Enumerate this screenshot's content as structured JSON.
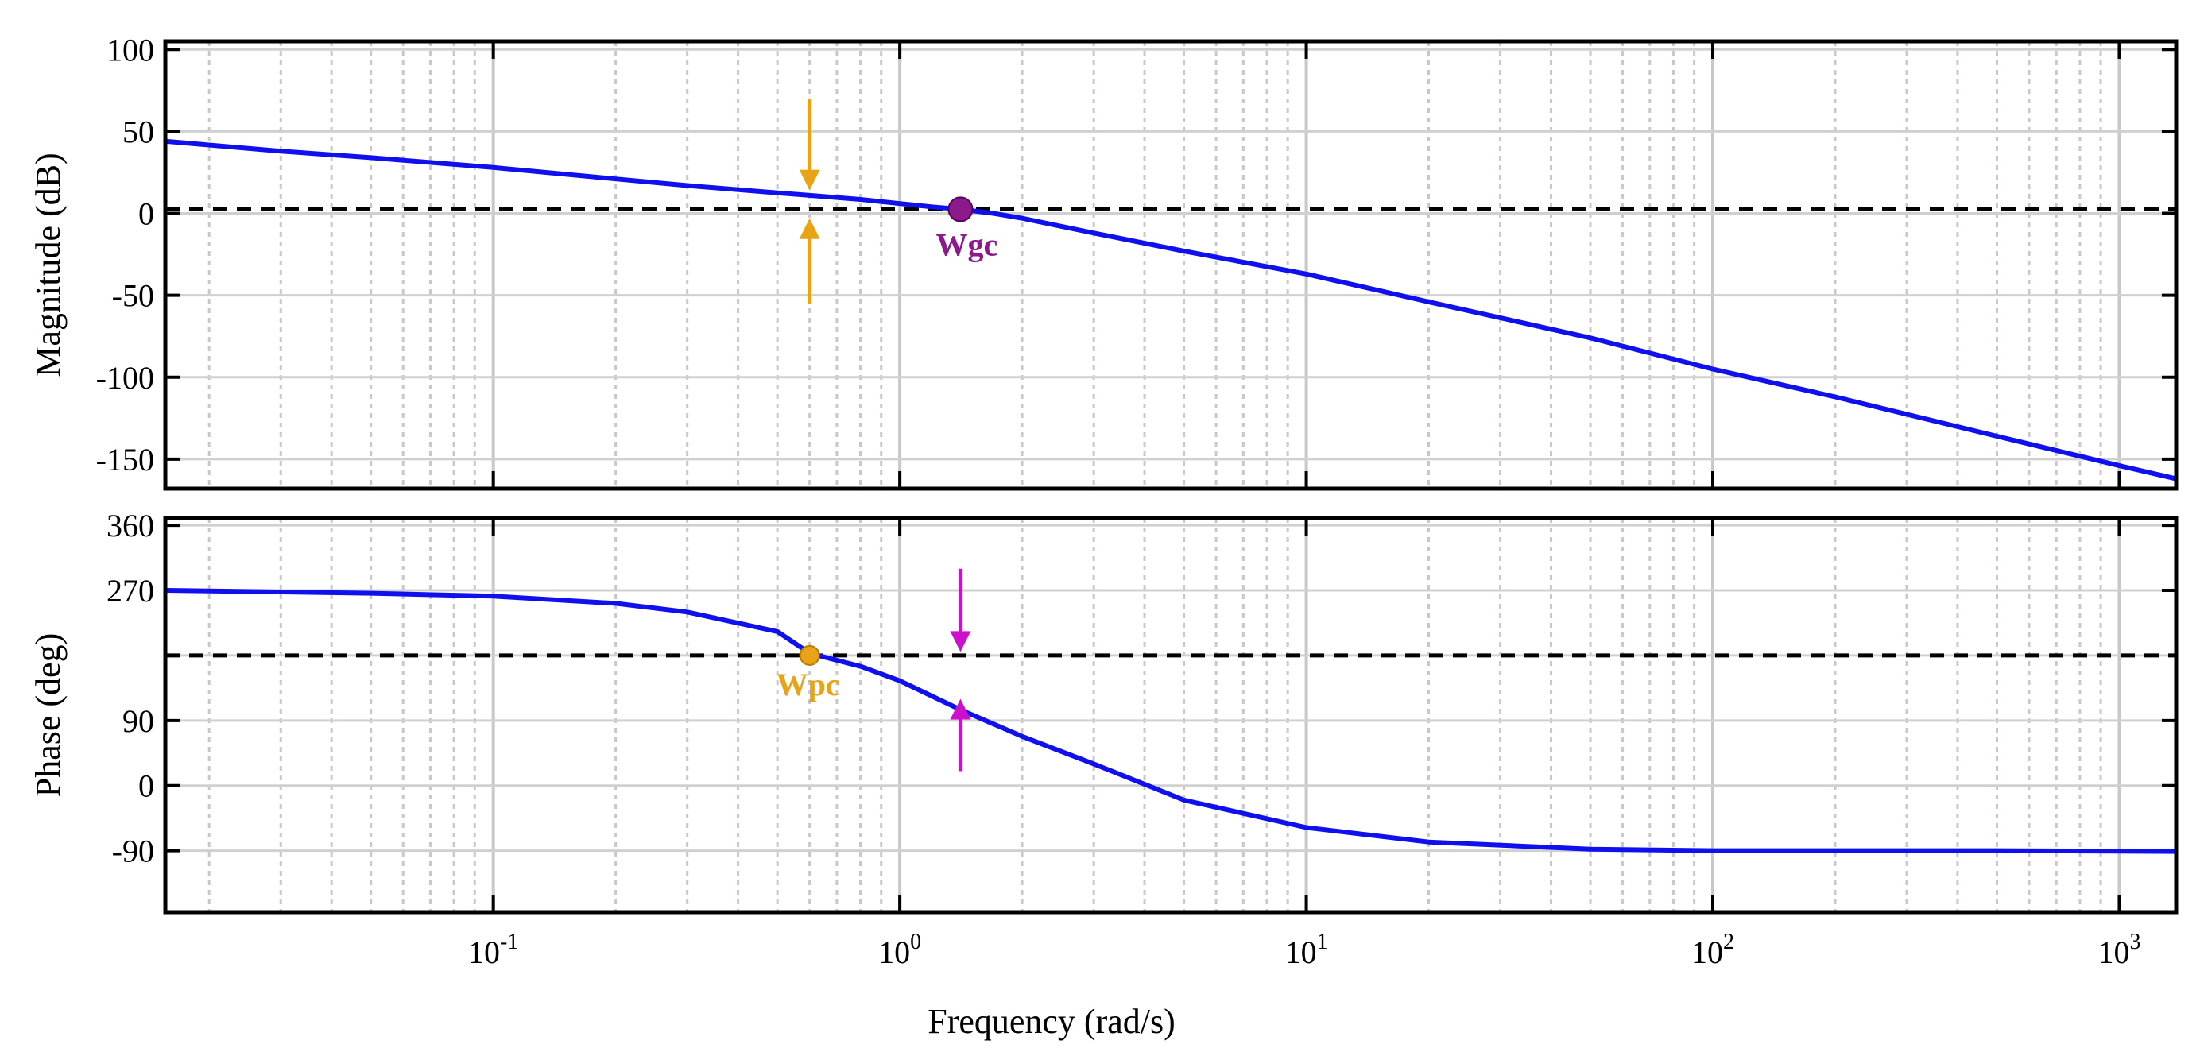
{
  "chart_data": [
    {
      "id": "magnitude",
      "type": "line",
      "xscale": "log",
      "xlim": [
        0.0156,
        1380
      ],
      "ylim": [
        -168,
        105
      ],
      "yticks": [
        100,
        50,
        0,
        -50,
        -100,
        -150
      ],
      "ytick_labels": [
        "100",
        "50",
        "0",
        "-50",
        "-100",
        "-150"
      ],
      "ylabel": "Magnitude (dB)",
      "grid": true,
      "series": [
        {
          "name": "magnitude",
          "color": "#1010ee",
          "x": [
            0.0156,
            0.03,
            0.05,
            0.1,
            0.2,
            0.3,
            0.5,
            0.6,
            0.8,
            1.0,
            1.2,
            1.41,
            1.7,
            2,
            3,
            5,
            10,
            20,
            50,
            100,
            200,
            500,
            1000,
            1380
          ],
          "y": [
            44,
            38,
            34,
            28,
            21,
            17,
            12.5,
            11,
            8.5,
            6,
            4,
            2.5,
            0,
            -3,
            -12,
            -23,
            -37,
            -54,
            -76,
            -95,
            -112,
            -136,
            -154,
            -162
          ]
        }
      ],
      "reference_line": {
        "y": 2.5,
        "style": "dashed",
        "color": "#000000"
      },
      "arrows": [
        {
          "x": 0.6,
          "from": 70,
          "to": 14,
          "color": "#e8a317"
        },
        {
          "x": 0.6,
          "from": -55,
          "to": -3,
          "color": "#e8a317"
        }
      ],
      "marker": {
        "x": 1.41,
        "y": 2.5,
        "label": "Wgc",
        "color": "#8b1a8b"
      }
    },
    {
      "id": "phase",
      "type": "line",
      "xscale": "log",
      "xlim": [
        0.0156,
        1380
      ],
      "ylim": [
        -175,
        370
      ],
      "yticks": [
        360,
        270,
        90,
        0,
        -90
      ],
      "ytick_labels": [
        "360",
        "270",
        "90",
        "0",
        "-90"
      ],
      "minor_grid_y": [
        180
      ],
      "ylabel": "Phase (deg)",
      "xlabel": "Frequency (rad/s)",
      "xtick_values": [
        0.1,
        1,
        10,
        100,
        1000
      ],
      "xtick_labels": [
        {
          "base": "10",
          "exp": "-1"
        },
        {
          "base": "10",
          "exp": "0"
        },
        {
          "base": "10",
          "exp": "1"
        },
        {
          "base": "10",
          "exp": "2"
        },
        {
          "base": "10",
          "exp": "3"
        }
      ],
      "grid": true,
      "series": [
        {
          "name": "phase",
          "color": "#1010ee",
          "x": [
            0.0156,
            0.05,
            0.1,
            0.2,
            0.3,
            0.5,
            0.6,
            0.8,
            1.0,
            1.41,
            2,
            3,
            5,
            10,
            20,
            50,
            100,
            200,
            500,
            1380
          ],
          "y": [
            270,
            266,
            262,
            252,
            240,
            213,
            183,
            165,
            145,
            105,
            68,
            30,
            -20,
            -58,
            -78,
            -88,
            -90,
            -90,
            -90,
            -91
          ]
        }
      ],
      "reference_line": {
        "y": 180,
        "style": "dashed",
        "color": "#000000"
      },
      "arrows": [
        {
          "x": 1.41,
          "from": 300,
          "to": 185,
          "color": "#cc11cc"
        },
        {
          "x": 1.41,
          "from": 20,
          "to": 120,
          "color": "#cc11cc"
        }
      ],
      "marker": {
        "x": 0.6,
        "y": 180,
        "label": "Wpc",
        "color": "#e8a317"
      }
    }
  ]
}
